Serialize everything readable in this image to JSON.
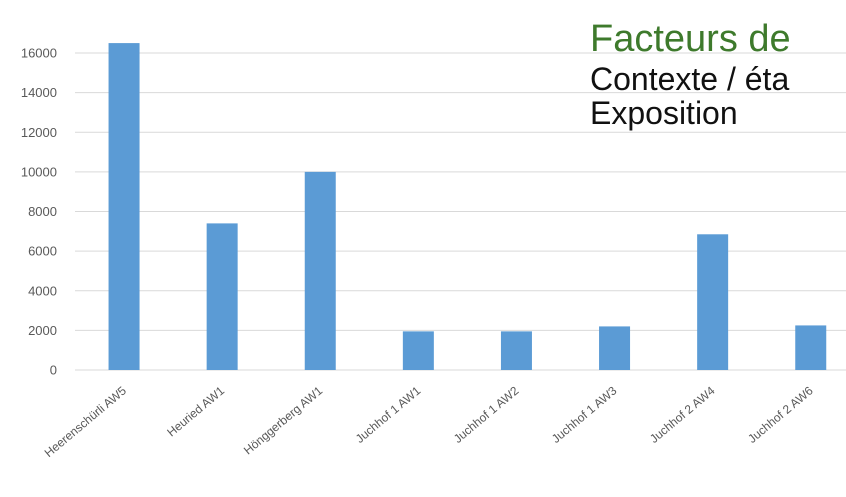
{
  "chart_data": {
    "type": "bar",
    "categories": [
      "Heerenschürli AW5",
      "Heuried AW1",
      "Hönggerberg AW1",
      "Juchhof 1 AW1",
      "Juchhof 1 AW2",
      "Juchhof 1 AW3",
      "Juchhof 2 AW4",
      "Juchhof 2 AW6"
    ],
    "values": [
      16500,
      7400,
      10000,
      1950,
      1950,
      2200,
      6850,
      2250
    ],
    "ylim": [
      0,
      16000
    ],
    "yticks": [
      0,
      2000,
      4000,
      6000,
      8000,
      10000,
      12000,
      14000,
      16000
    ],
    "grid": true,
    "legend": "none",
    "bar_color": "#5b9bd5",
    "grid_color": "#d9d9d9",
    "tick_label_color": "#595959"
  },
  "overlay": {
    "title": "Facteurs de",
    "line1": "Contexte / éta",
    "line2": "Exposition",
    "title_color": "#3e7a2c"
  }
}
